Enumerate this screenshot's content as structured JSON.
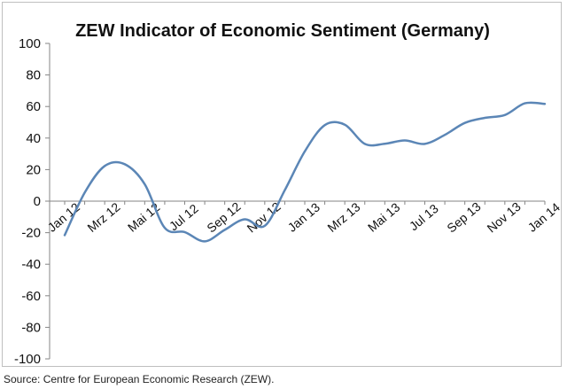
{
  "chart_data": {
    "type": "line",
    "title": "ZEW Indicator of Economic Sentiment (Germany)",
    "xlabel": "",
    "ylabel": "",
    "ylim": [
      -100,
      100
    ],
    "yticks": [
      100,
      80,
      60,
      40,
      20,
      0,
      -20,
      -40,
      -60,
      -80,
      -100
    ],
    "grid": false,
    "legend": "none",
    "x": [
      "Jan 12",
      "Feb 12",
      "Mrz 12",
      "Apr 12",
      "Mai 12",
      "Jun 12",
      "Jul 12",
      "Aug 12",
      "Sep 12",
      "Okt 12",
      "Nov 12",
      "Dez 12",
      "Jan 13",
      "Feb 13",
      "Mrz 13",
      "Apr 13",
      "Mai 13",
      "Jun 13",
      "Jul 13",
      "Aug 13",
      "Sep 13",
      "Okt 13",
      "Nov 13",
      "Dez 13",
      "Jan 14"
    ],
    "xtick_labels": [
      "Jan 12",
      "Mrz 12",
      "Mai 12",
      "Jul 12",
      "Sep 12",
      "Nov 12",
      "Jan 13",
      "Mrz 13",
      "Mai 13",
      "Jul 13",
      "Sep 13",
      "Nov 13",
      "Jan 14"
    ],
    "series": [
      {
        "name": "ZEW Economic Sentiment",
        "color": "#5b86b6",
        "values": [
          -21.6,
          5.4,
          22.3,
          23.4,
          10.8,
          -16.9,
          -19.6,
          -25.5,
          -18.2,
          -11.5,
          -15.7,
          6.9,
          31.5,
          48.2,
          48.5,
          36.3,
          36.4,
          38.5,
          36.3,
          42.0,
          49.6,
          52.8,
          54.6,
          62.0,
          61.7
        ]
      }
    ]
  },
  "source": "Source: Centre for European Economic Research (ZEW)."
}
